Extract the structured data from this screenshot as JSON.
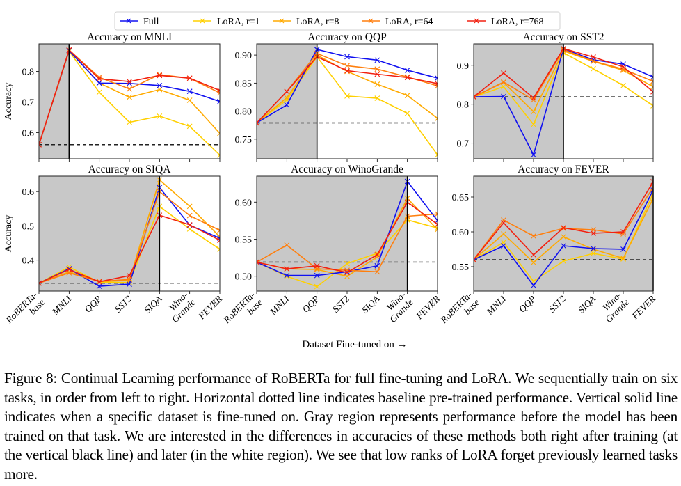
{
  "figure": {
    "legend": [
      {
        "name": "Full",
        "color": "#1010f0"
      },
      {
        "name": "LoRA, r=1",
        "color": "#ffd000"
      },
      {
        "name": "LoRA, r=8",
        "color": "#ffaa00"
      },
      {
        "name": "LoRA, r=64",
        "color": "#ff7f0e"
      },
      {
        "name": "LoRA, r=768",
        "color": "#f22010"
      }
    ],
    "xlabel": "Dataset Fine-tuned on →",
    "ylabel": "Accuracy",
    "caption": "Figure 8: Continual Learning performance of RoBERTa for full fine-tuning and LoRA. We sequentially train on six tasks, in order from left to right. Horizontal dotted line indicates baseline pre-trained performance. Vertical solid line indicates when a specific dataset is fine-tuned on. Gray region represents performance before the model has been trained on that task. We are interested in the differences in accuracies of these methods both right after training (at the vertical black line) and later (in the white region). We see that low ranks of LoRA forget previously learned tasks more."
  },
  "chart_data": [
    {
      "type": "line",
      "title": "Accuracy on MNLI",
      "ylabel": "Accuracy",
      "categories": [
        "RoBERTa-base",
        "MNLI",
        "QQP",
        "SST2",
        "SIQA",
        "Wino-Grande",
        "FEVER"
      ],
      "ylim": [
        0.515,
        0.89
      ],
      "yticks": [
        0.6,
        0.7,
        0.8
      ],
      "yticklabels": [
        "0.6",
        "0.7",
        "0.8"
      ],
      "baseline": 0.561,
      "trained_index": 1,
      "series": [
        {
          "name": "Full",
          "values": [
            0.561,
            0.868,
            0.762,
            0.761,
            0.754,
            0.735,
            0.702
          ]
        },
        {
          "name": "LoRA, r=1",
          "values": [
            0.561,
            0.866,
            0.732,
            0.634,
            0.654,
            0.621,
            0.527
          ]
        },
        {
          "name": "LoRA, r=8",
          "values": [
            0.561,
            0.868,
            0.762,
            0.716,
            0.741,
            0.706,
            0.598
          ]
        },
        {
          "name": "LoRA, r=64",
          "values": [
            0.561,
            0.87,
            0.781,
            0.743,
            0.79,
            0.778,
            0.73
          ]
        },
        {
          "name": "LoRA, r=768",
          "values": [
            0.561,
            0.87,
            0.776,
            0.767,
            0.787,
            0.778,
            0.738
          ]
        }
      ]
    },
    {
      "type": "line",
      "title": "Accuracy on QQP",
      "ylabel": "",
      "categories": [
        "RoBERTa-base",
        "MNLI",
        "QQP",
        "SST2",
        "SIQA",
        "Wino-Grande",
        "FEVER"
      ],
      "ylim": [
        0.715,
        0.92
      ],
      "yticks": [
        0.75,
        0.8,
        0.85,
        0.9
      ],
      "yticklabels": [
        "0.75",
        "0.80",
        "0.85",
        "0.90"
      ],
      "baseline": 0.779,
      "trained_index": 2,
      "series": [
        {
          "name": "Full",
          "values": [
            0.779,
            0.811,
            0.91,
            0.897,
            0.891,
            0.873,
            0.859
          ]
        },
        {
          "name": "LoRA, r=1",
          "values": [
            0.779,
            0.82,
            0.897,
            0.827,
            0.823,
            0.796,
            0.722
          ]
        },
        {
          "name": "LoRA, r=8",
          "values": [
            0.779,
            0.824,
            0.9,
            0.871,
            0.848,
            0.828,
            0.787
          ]
        },
        {
          "name": "LoRA, r=64",
          "values": [
            0.779,
            0.835,
            0.903,
            0.881,
            0.875,
            0.861,
            0.845
          ]
        },
        {
          "name": "LoRA, r=768",
          "values": [
            0.779,
            0.835,
            0.897,
            0.872,
            0.866,
            0.86,
            0.849
          ]
        }
      ]
    },
    {
      "type": "line",
      "title": "Accuracy on SST2",
      "ylabel": "",
      "categories": [
        "RoBERTa-base",
        "MNLI",
        "QQP",
        "SST2",
        "SIQA",
        "Wino-Grande",
        "FEVER"
      ],
      "ylim": [
        0.66,
        0.955
      ],
      "yticks": [
        0.7,
        0.8,
        0.9
      ],
      "yticklabels": [
        "0.7",
        "0.8",
        "0.9"
      ],
      "baseline": 0.819,
      "trained_index": 3,
      "series": [
        {
          "name": "Full",
          "values": [
            0.819,
            0.82,
            0.67,
            0.942,
            0.914,
            0.903,
            0.87
          ]
        },
        {
          "name": "LoRA, r=1",
          "values": [
            0.819,
            0.845,
            0.748,
            0.932,
            0.891,
            0.848,
            0.796
          ]
        },
        {
          "name": "LoRA, r=8",
          "values": [
            0.819,
            0.856,
            0.781,
            0.937,
            0.91,
            0.887,
            0.845
          ]
        },
        {
          "name": "LoRA, r=64",
          "values": [
            0.819,
            0.857,
            0.811,
            0.94,
            0.911,
            0.89,
            0.859
          ]
        },
        {
          "name": "LoRA, r=768",
          "values": [
            0.819,
            0.88,
            0.816,
            0.943,
            0.921,
            0.896,
            0.832
          ]
        }
      ]
    },
    {
      "type": "line",
      "title": "Accuracy on SIQA",
      "ylabel": "Accuracy",
      "categories": [
        "RoBERTa-base",
        "MNLI",
        "QQP",
        "SST2",
        "SIQA",
        "Wino-Grande",
        "FEVER"
      ],
      "ylim": [
        0.31,
        0.645
      ],
      "yticks": [
        0.4,
        0.5,
        0.6
      ],
      "yticklabels": [
        "0.4",
        "0.5",
        "0.6"
      ],
      "baseline": 0.333,
      "trained_index": 4,
      "series": [
        {
          "name": "Full",
          "values": [
            0.333,
            0.375,
            0.324,
            0.33,
            0.612,
            0.502,
            0.464
          ]
        },
        {
          "name": "LoRA, r=1",
          "values": [
            0.333,
            0.38,
            0.336,
            0.335,
            0.557,
            0.491,
            0.432
          ]
        },
        {
          "name": "LoRA, r=8",
          "values": [
            0.333,
            0.366,
            0.338,
            0.341,
            0.634,
            0.557,
            0.468
          ]
        },
        {
          "name": "LoRA, r=64",
          "values": [
            0.333,
            0.363,
            0.338,
            0.344,
            0.6,
            0.53,
            0.487
          ]
        },
        {
          "name": "LoRA, r=768",
          "values": [
            0.333,
            0.373,
            0.337,
            0.355,
            0.531,
            0.503,
            0.458
          ]
        }
      ]
    },
    {
      "type": "line",
      "title": "Accuracy on WinoGrande",
      "ylabel": "",
      "categories": [
        "RoBERTa-base",
        "MNLI",
        "QQP",
        "SST2",
        "SIQA",
        "Wino-Grande",
        "FEVER"
      ],
      "ylim": [
        0.48,
        0.635
      ],
      "yticks": [
        0.5,
        0.55,
        0.6
      ],
      "yticklabels": [
        "0.50",
        "0.55",
        "0.60"
      ],
      "baseline": 0.519,
      "trained_index": 5,
      "series": [
        {
          "name": "Full",
          "values": [
            0.519,
            0.501,
            0.501,
            0.506,
            0.514,
            0.628,
            0.575
          ]
        },
        {
          "name": "LoRA, r=1",
          "values": [
            0.519,
            0.5,
            0.486,
            0.517,
            0.531,
            0.576,
            0.565
          ]
        },
        {
          "name": "LoRA, r=8",
          "values": [
            0.519,
            0.51,
            0.509,
            0.5,
            0.526,
            0.605,
            0.563
          ]
        },
        {
          "name": "LoRA, r=64",
          "values": [
            0.519,
            0.542,
            0.51,
            0.508,
            0.506,
            0.581,
            0.584
          ]
        },
        {
          "name": "LoRA, r=768",
          "values": [
            0.519,
            0.51,
            0.514,
            0.505,
            0.529,
            0.6,
            0.57
          ]
        }
      ]
    },
    {
      "type": "line",
      "title": "Accuracy on FEVER",
      "ylabel": "",
      "categories": [
        "RoBERTa-base",
        "MNLI",
        "QQP",
        "SST2",
        "SIQA",
        "Wino-Grande",
        "FEVER"
      ],
      "ylim": [
        0.515,
        0.68
      ],
      "yticks": [
        0.55,
        0.6,
        0.65
      ],
      "yticklabels": [
        "0.55",
        "0.60",
        "0.65"
      ],
      "baseline": 0.56,
      "trained_index": 6,
      "series": [
        {
          "name": "Full",
          "values": [
            0.56,
            0.58,
            0.523,
            0.58,
            0.576,
            0.575,
            0.66
          ]
        },
        {
          "name": "LoRA, r=1",
          "values": [
            0.56,
            0.585,
            0.529,
            0.558,
            0.569,
            0.561,
            0.655
          ]
        },
        {
          "name": "LoRA, r=8",
          "values": [
            0.56,
            0.597,
            0.556,
            0.593,
            0.575,
            0.562,
            0.648
          ]
        },
        {
          "name": "LoRA, r=64",
          "values": [
            0.56,
            0.617,
            0.594,
            0.605,
            0.603,
            0.597,
            0.664
          ]
        },
        {
          "name": "LoRA, r=768",
          "values": [
            0.56,
            0.613,
            0.567,
            0.606,
            0.598,
            0.6,
            0.672
          ]
        }
      ]
    }
  ]
}
